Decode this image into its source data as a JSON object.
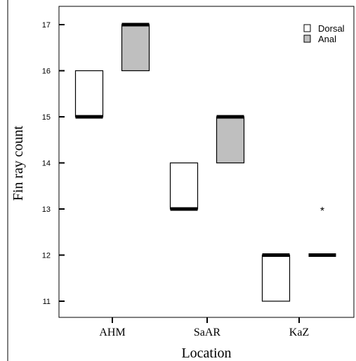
{
  "chart_data": {
    "type": "boxplot",
    "title": "",
    "xlabel": "Location",
    "ylabel": "Fin ray count",
    "categories": [
      "AHM",
      "SaAR",
      "KaZ"
    ],
    "ylim": [
      10.5,
      17.3
    ],
    "yticks": [
      "11",
      "12",
      "13",
      "14",
      "15",
      "16",
      "17"
    ],
    "legend_position": "top-right",
    "grid": false,
    "series": [
      {
        "name": "Dorsal",
        "color": "#ffffff",
        "boxes": [
          {
            "category": "AHM",
            "q1": 15,
            "median": 15,
            "q3": 16
          },
          {
            "category": "SaAR",
            "q1": 13,
            "median": 13,
            "q3": 14
          },
          {
            "category": "KaZ",
            "q1": 11,
            "median": 12,
            "q3": 12
          }
        ],
        "outliers": []
      },
      {
        "name": "Anal",
        "color": "#bfbfbf",
        "boxes": [
          {
            "category": "AHM",
            "q1": 16,
            "median": 17,
            "q3": 17
          },
          {
            "category": "SaAR",
            "q1": 14,
            "median": 15,
            "q3": 15
          },
          {
            "category": "KaZ",
            "q1": 12,
            "median": 12,
            "q3": 12
          }
        ],
        "outliers": [
          {
            "category": "KaZ",
            "value": 13,
            "symbol": "*"
          }
        ]
      }
    ]
  }
}
